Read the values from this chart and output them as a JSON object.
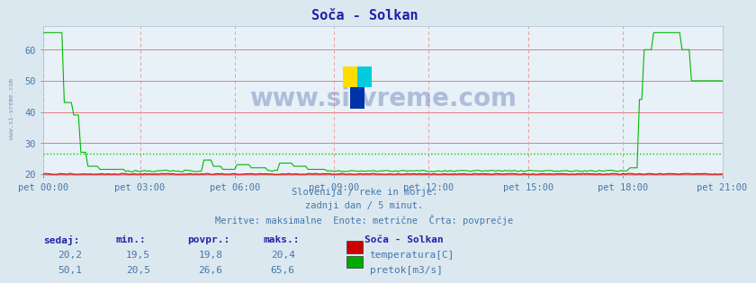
{
  "title": "Soča - Solkan",
  "bg_color": "#dce8f0",
  "plot_bg_color": "#e8f0f8",
  "grid_h_color": "#e08080",
  "grid_v_color": "#e8a0a0",
  "title_color": "#2222aa",
  "text_color": "#4477aa",
  "xlabel_ticks": [
    "pet 00:00",
    "pet 03:00",
    "pet 06:00",
    "pet 09:00",
    "pet 12:00",
    "pet 15:00",
    "pet 18:00",
    "pet 21:00"
  ],
  "tick_positions_frac": [
    0.0,
    0.1429,
    0.2857,
    0.4286,
    0.5714,
    0.7143,
    0.8571,
    1.0
  ],
  "total_points": 288,
  "ylim_min": 19.5,
  "ylim_max": 67.5,
  "yticks": [
    20,
    30,
    40,
    50,
    60
  ],
  "temp_avg": 19.8,
  "flow_avg": 26.6,
  "avg_line_color": "#00cc00",
  "temp_line_color": "#cc0000",
  "flow_line_color": "#00bb00",
  "watermark_text": "www.si-vreme.com",
  "sub_text1": "Slovenija / reke in morje.",
  "sub_text2": "zadnji dan / 5 minut.",
  "sub_text3": "Meritve: maksimalne  Enote: metrične  Črta: povprečje",
  "footer_label": "Soča - Solkan",
  "footer_headers": [
    "sedaj:",
    "min.:",
    "povpr.:",
    "maks.:"
  ],
  "footer_row1": [
    "20,2",
    "19,5",
    "19,8",
    "20,4"
  ],
  "footer_row2": [
    "50,1",
    "20,5",
    "26,6",
    "65,6"
  ],
  "footer_legend1": "temperatura[C]",
  "footer_legend2": "pretok[m3/s]",
  "temp_rect_color": "#cc0000",
  "flow_rect_color": "#00aa00",
  "left_margin_label": "www.si-vreme.com"
}
